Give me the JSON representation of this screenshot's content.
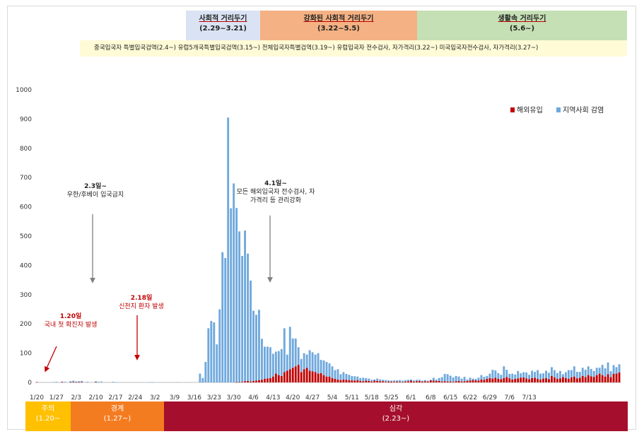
{
  "phases": [
    {
      "label": "사회적 거리두기",
      "period": "(2.29~3.21)",
      "color": "#dae3f3"
    },
    {
      "label": "강화된 사회적 거리두기",
      "period": "(3.22~5.5)",
      "color": "#f4b183"
    },
    {
      "label": "생활속 거리두기",
      "period": "(5.6~)",
      "color": "#c5e0b4"
    }
  ],
  "measures_text": "중국입국자 특별입국검역(2.4~)  유럽5개국특별입국검역(3.15~)  전체입국자특별검역(3.19~)  유럽입국자 전수검사, 자가격리(3.22~)  미국입국자전수검사, 자가격리(3.27~)",
  "alert_levels": [
    {
      "label": "주의",
      "period": "(1.20~",
      "color": "#ffc000"
    },
    {
      "label": "경계",
      "period": "(1.27~)",
      "color": "#f47c20"
    },
    {
      "label": "심각",
      "period": "(2.23~)",
      "color": "#a50f2d"
    }
  ],
  "annotations": [
    {
      "lines": [
        "1.20일",
        "국내 첫 확진자 발생"
      ],
      "color": "#c00000"
    },
    {
      "lines": [
        "2.3일~",
        "우한/후베이 입국금지"
      ],
      "color": "#222222"
    },
    {
      "lines": [
        "2.18일",
        "신천지 환자 발생"
      ],
      "color": "#c00000"
    },
    {
      "lines": [
        "4.1일~",
        "모든 해외입국자 전수검사, 자",
        "가격리 등 관리강화"
      ],
      "color": "#222222"
    }
  ],
  "chart_data": {
    "type": "bar",
    "stacked": true,
    "ylim": [
      0,
      1000
    ],
    "yticks": [
      0,
      100,
      200,
      300,
      400,
      500,
      600,
      700,
      800,
      900,
      1000
    ],
    "x_tick_labels": [
      "1/20",
      "1/27",
      "2/3",
      "2/10",
      "2/17",
      "2/24",
      "3/2",
      "3/9",
      "3/16",
      "3/23",
      "3/30",
      "4/6",
      "4/13",
      "4/20",
      "4/27",
      "5/4",
      "5/11",
      "5/18",
      "5/25",
      "6/1",
      "6/8",
      "6/15",
      "6/22",
      "6/29",
      "7/6",
      "7/13"
    ],
    "start_date": "1/20",
    "legend": {
      "position": "top-right"
    },
    "series": [
      {
        "name": "해외유입",
        "color": "#c00000",
        "values": [
          1,
          0,
          0,
          0,
          0,
          0,
          0,
          0,
          0,
          1,
          0,
          0,
          1,
          1,
          1,
          1,
          1,
          0,
          0,
          0,
          0,
          1,
          0,
          0,
          0,
          0,
          0,
          0,
          0,
          0,
          0,
          0,
          0,
          0,
          0,
          0,
          0,
          0,
          0,
          0,
          0,
          0,
          0,
          0,
          0,
          0,
          0,
          0,
          0,
          0,
          0,
          0,
          0,
          0,
          0,
          0,
          0,
          0,
          0,
          0,
          0,
          0,
          0,
          0,
          0,
          0,
          0,
          0,
          0,
          0,
          0,
          1,
          1,
          2,
          4,
          5,
          3,
          5,
          6,
          8,
          9,
          12,
          14,
          15,
          20,
          30,
          25,
          22,
          35,
          40,
          45,
          50,
          55,
          60,
          35,
          45,
          50,
          40,
          38,
          35,
          30,
          32,
          25,
          20,
          20,
          15,
          12,
          10,
          8,
          10,
          9,
          8,
          7,
          6,
          8,
          5,
          4,
          6,
          5,
          3,
          6,
          5,
          4,
          4,
          2,
          3,
          3,
          2,
          3,
          2,
          1,
          3,
          4,
          6,
          3,
          4,
          5,
          3,
          4,
          3,
          7,
          6,
          5,
          5,
          3,
          4,
          3,
          3,
          2,
          4,
          5,
          3,
          4,
          5,
          6,
          8,
          7,
          6,
          10,
          9,
          12,
          15,
          13,
          16,
          12,
          11,
          15,
          18,
          14,
          10,
          12,
          14,
          16,
          17,
          14,
          11,
          15,
          16,
          12,
          10,
          13,
          15,
          11,
          22,
          17,
          12,
          14,
          18,
          15,
          12,
          17,
          20,
          14,
          16,
          22,
          18,
          25,
          21,
          19,
          25,
          30,
          25,
          20,
          28,
          18,
          29,
          30,
          34
        ]
      },
      {
        "name": "지역사회 감염",
        "color": "#6fa8dc",
        "values": [
          0,
          0,
          0,
          0,
          0,
          0,
          1,
          2,
          0,
          2,
          2,
          0,
          3,
          5,
          2,
          3,
          4,
          0,
          2,
          0,
          0,
          3,
          2,
          3,
          0,
          0,
          0,
          2,
          1,
          0,
          0,
          0,
          0,
          0,
          0,
          0,
          0,
          0,
          0,
          0,
          1,
          1,
          0,
          0,
          0,
          0,
          0,
          0,
          0,
          0,
          1,
          0,
          0,
          0,
          0,
          0,
          0,
          0,
          30,
          15,
          70,
          185,
          210,
          205,
          130,
          250,
          445,
          425,
          905,
          595,
          680,
          595,
          515,
          430,
          515,
          435,
          345,
          240,
          225,
          240,
          140,
          110,
          108,
          105,
          78,
          75,
          82,
          92,
          150,
          55,
          145,
          100,
          95,
          60,
          45,
          55,
          45,
          70,
          65,
          60,
          70,
          45,
          50,
          50,
          45,
          40,
          30,
          35,
          20,
          25,
          20,
          18,
          15,
          15,
          12,
          10,
          12,
          9,
          8,
          6,
          4,
          8,
          6,
          5,
          6,
          4,
          3,
          5,
          4,
          6,
          5,
          5,
          5,
          4,
          4,
          5,
          4,
          3,
          4,
          3,
          2,
          10,
          5,
          10,
          15,
          25,
          25,
          20,
          15,
          18,
          15,
          10,
          15,
          5,
          10,
          5,
          5,
          10,
          15,
          10,
          10,
          15,
          30,
          25,
          20,
          15,
          40,
          25,
          15,
          20,
          15,
          25,
          15,
          18,
          20,
          15,
          25,
          20,
          30,
          20,
          18,
          25,
          22,
          30,
          25,
          20,
          25,
          10,
          20,
          30,
          25,
          35,
          22,
          20,
          28,
          25,
          30,
          25,
          20,
          25,
          20,
          35,
          28,
          40,
          20,
          30,
          22,
          28,
          25,
          10,
          20
        ]
      }
    ]
  }
}
